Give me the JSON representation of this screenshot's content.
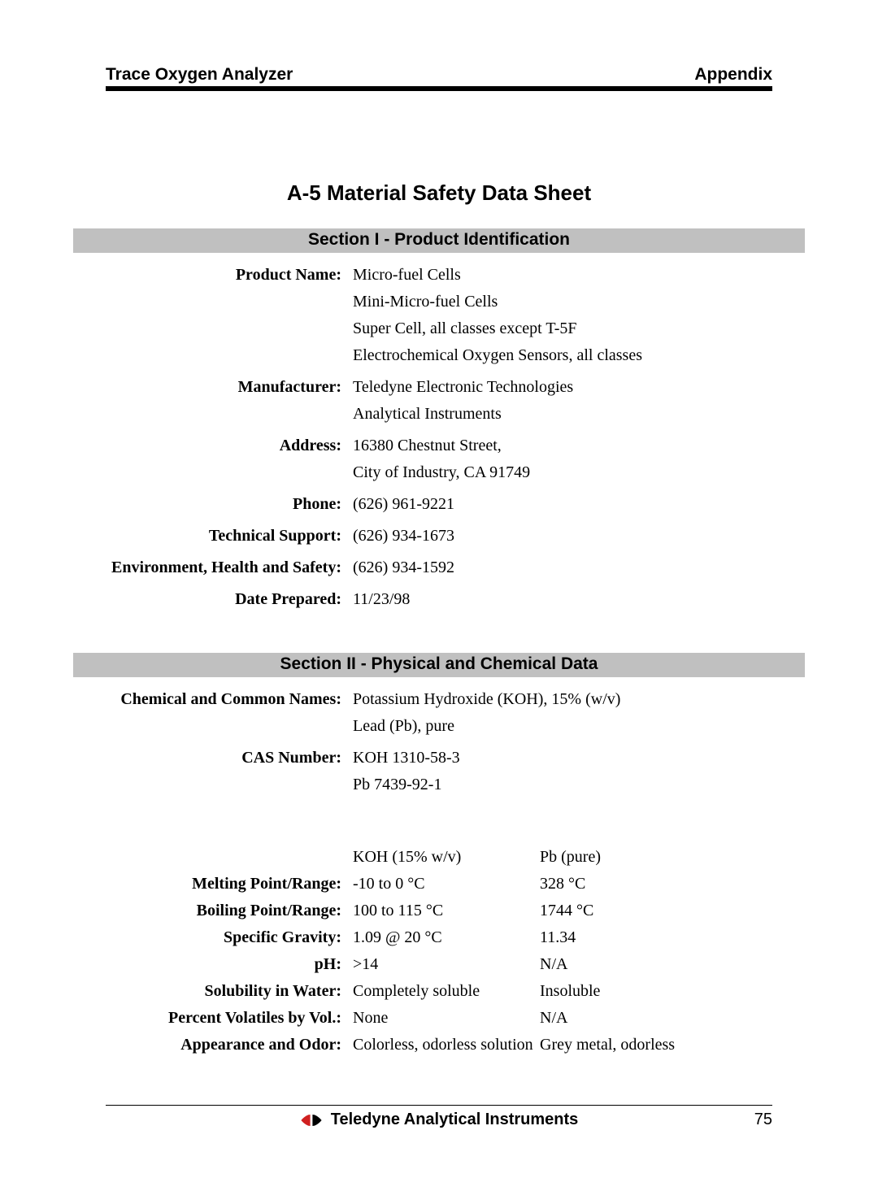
{
  "header": {
    "left": "Trace Oxygen Analyzer",
    "right": "Appendix"
  },
  "title": "A-5 Material Safety Data Sheet",
  "section1": {
    "heading": "Section I - Product Identification",
    "rows": [
      {
        "label": "Product Name:",
        "lines": [
          "Micro-fuel Cells",
          "Mini-Micro-fuel Cells",
          "Super Cell, all classes except T-5F",
          "Electrochemical Oxygen Sensors, all classes"
        ]
      },
      {
        "label": "Manufacturer:",
        "lines": [
          "Teledyne Electronic Technologies",
          "Analytical Instruments"
        ]
      },
      {
        "label": "Address:",
        "lines": [
          "16380 Chestnut Street,",
          "City of Industry, CA 91749"
        ]
      },
      {
        "label": "Phone:",
        "lines": [
          "(626) 961-9221"
        ]
      },
      {
        "label": "Technical Support:",
        "lines": [
          "(626) 934-1673"
        ]
      },
      {
        "label": "Environment, Health and Safety:",
        "lines": [
          "(626) 934-1592"
        ]
      },
      {
        "label": "Date Prepared:",
        "lines": [
          "11/23/98"
        ]
      }
    ]
  },
  "section2": {
    "heading": "Section II - Physical and Chemical Data",
    "top_rows": [
      {
        "label": "Chemical and Common Names:",
        "lines": [
          "Potassium Hydroxide (KOH), 15% (w/v)",
          "Lead (Pb), pure"
        ]
      },
      {
        "label": "CAS Number:",
        "lines": [
          "KOH 1310-58-3",
          "Pb 7439-92-1"
        ]
      }
    ],
    "columns": {
      "c2": "KOH (15% w/v)",
      "c3": "Pb (pure)"
    },
    "table": [
      {
        "label": "Melting Point/Range:",
        "c2": "-10 to 0 °C",
        "c3": "328 °C"
      },
      {
        "label": "Boiling Point/Range:",
        "c2": "100 to 115 °C",
        "c3": "1744 °C"
      },
      {
        "label": "Specific Gravity:",
        "c2": "1.09 @ 20 °C",
        "c3": "11.34"
      },
      {
        "label": "pH:",
        "c2": ">14",
        "c3": "N/A"
      },
      {
        "label": "Solubility in Water:",
        "c2": "Completely soluble",
        "c3": "Insoluble"
      },
      {
        "label": "Percent Volatiles by Vol.:",
        "c2": "None",
        "c3": "N/A"
      },
      {
        "label": "Appearance and Odor:",
        "c2": "Colorless, odorless solution",
        "c3": "Grey metal, odorless"
      }
    ]
  },
  "footer": {
    "company": "Teledyne Analytical Instruments",
    "page": "75",
    "logo_colors": {
      "left": "#d02020",
      "right": "#000000"
    }
  }
}
